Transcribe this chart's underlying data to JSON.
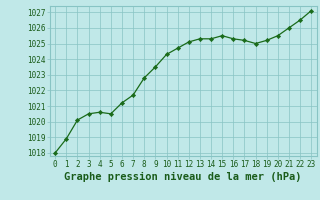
{
  "x": [
    0,
    1,
    2,
    3,
    4,
    5,
    6,
    7,
    8,
    9,
    10,
    11,
    12,
    13,
    14,
    15,
    16,
    17,
    18,
    19,
    20,
    21,
    22,
    23
  ],
  "y": [
    1018.0,
    1018.9,
    1020.1,
    1020.5,
    1020.6,
    1020.5,
    1021.2,
    1021.7,
    1022.8,
    1023.5,
    1024.3,
    1024.7,
    1025.1,
    1025.3,
    1025.3,
    1025.5,
    1025.3,
    1025.2,
    1025.0,
    1025.2,
    1025.5,
    1026.0,
    1026.5,
    1027.1
  ],
  "ylim_min": 1017.8,
  "ylim_max": 1027.4,
  "xlim_min": -0.5,
  "xlim_max": 23.5,
  "yticks": [
    1018,
    1019,
    1020,
    1021,
    1022,
    1023,
    1024,
    1025,
    1026,
    1027
  ],
  "xticks": [
    0,
    1,
    2,
    3,
    4,
    5,
    6,
    7,
    8,
    9,
    10,
    11,
    12,
    13,
    14,
    15,
    16,
    17,
    18,
    19,
    20,
    21,
    22,
    23
  ],
  "xlabel": "Graphe pression niveau de la mer (hPa)",
  "line_color": "#1a6b1a",
  "marker": "D",
  "marker_size": 2.2,
  "background_color": "#c0e8e8",
  "grid_color": "#88c4c4",
  "tick_label_color": "#1a5c1a",
  "xlabel_color": "#1a5c1a",
  "tick_fontsize": 5.5,
  "xlabel_fontsize": 7.5,
  "linewidth": 0.9
}
